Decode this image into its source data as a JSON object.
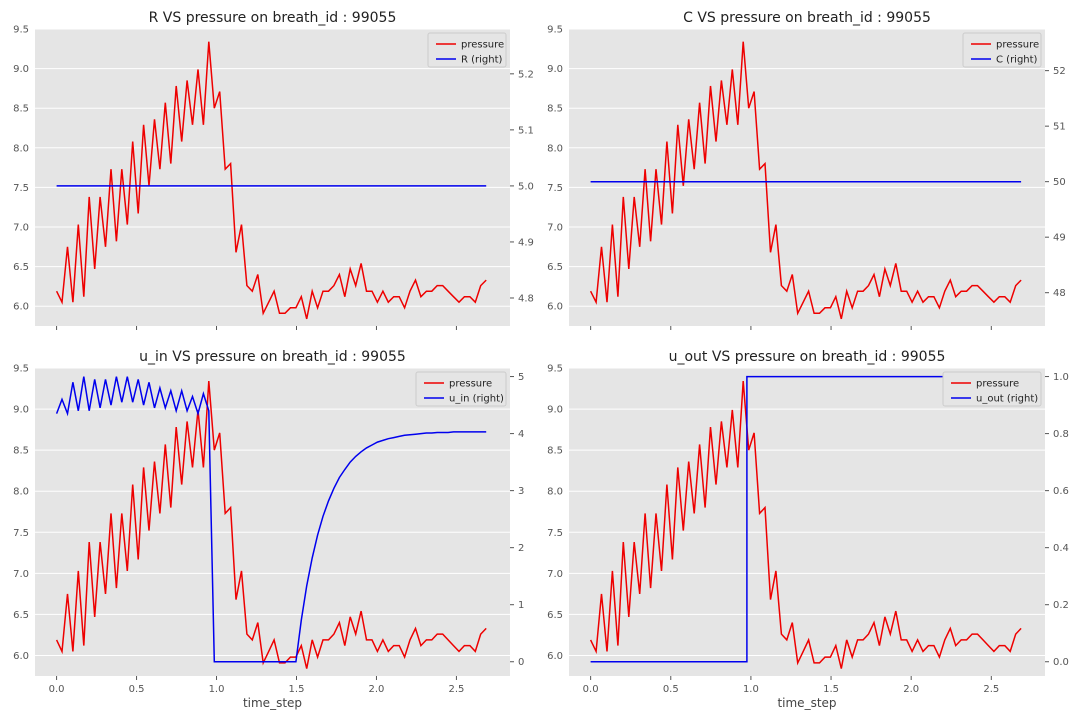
{
  "colors": {
    "pressure": "#ee0000",
    "right_series": "#0000ee",
    "panel_bg": "#e5e5e5",
    "grid": "#ffffff"
  },
  "chart_data": [
    {
      "type": "line",
      "title": "R VS pressure on breath_id : 99055",
      "xlabel": "",
      "x_ticks": [
        "0.0",
        "0.5",
        "1.0",
        "1.5",
        "2.0",
        "2.5"
      ],
      "x_tick_labels_visible": false,
      "xlim": [
        -0.135,
        2.835
      ],
      "left_axis": {
        "ylim": [
          5.75,
          9.5
        ],
        "ticks": [
          "6.0",
          "6.5",
          "7.0",
          "7.5",
          "8.0",
          "8.5",
          "9.0",
          "9.5"
        ]
      },
      "right_axis": {
        "ylim": [
          4.75,
          5.28
        ],
        "ticks": [
          "4.8",
          "4.9",
          "5.0",
          "5.1",
          "5.2"
        ]
      },
      "legend": {
        "placement": "top-right",
        "entries": [
          "pressure",
          "R (right)"
        ]
      },
      "grid": true,
      "series": [
        {
          "name": "pressure",
          "axis": "left"
        },
        {
          "name": "R (right)",
          "axis": "right",
          "kind": "constant",
          "value": 5.0
        }
      ]
    },
    {
      "type": "line",
      "title": "C VS pressure on breath_id : 99055",
      "xlabel": "",
      "x_ticks": [
        "0.0",
        "0.5",
        "1.0",
        "1.5",
        "2.0",
        "2.5"
      ],
      "x_tick_labels_visible": false,
      "xlim": [
        -0.135,
        2.835
      ],
      "left_axis": {
        "ylim": [
          5.75,
          9.5
        ],
        "ticks": [
          "6.0",
          "6.5",
          "7.0",
          "7.5",
          "8.0",
          "8.5",
          "9.0",
          "9.5"
        ]
      },
      "right_axis": {
        "ylim": [
          47.4,
          52.75
        ],
        "ticks": [
          "48",
          "49",
          "50",
          "51",
          "52"
        ]
      },
      "legend": {
        "placement": "top-right",
        "entries": [
          "pressure",
          "C (right)"
        ]
      },
      "grid": true,
      "series": [
        {
          "name": "pressure",
          "axis": "left"
        },
        {
          "name": "C (right)",
          "axis": "right",
          "kind": "constant",
          "value": 50
        }
      ]
    },
    {
      "type": "line",
      "title": "u_in VS pressure on breath_id : 99055",
      "xlabel": "time_step",
      "x_ticks": [
        "0.0",
        "0.5",
        "1.0",
        "1.5",
        "2.0",
        "2.5"
      ],
      "x_tick_labels_visible": true,
      "xlim": [
        -0.135,
        2.835
      ],
      "left_axis": {
        "ylim": [
          5.75,
          9.5
        ],
        "ticks": [
          "6.0",
          "6.5",
          "7.0",
          "7.5",
          "8.0",
          "8.5",
          "9.0",
          "9.5"
        ]
      },
      "right_axis": {
        "ylim": [
          -0.25,
          5.15
        ],
        "ticks": [
          "0",
          "1",
          "2",
          "3",
          "4",
          "5"
        ]
      },
      "legend": {
        "placement": "top-right",
        "entries": [
          "pressure",
          "u_in (right)"
        ]
      },
      "grid": true,
      "series": [
        {
          "name": "pressure",
          "axis": "left"
        },
        {
          "name": "u_in (right)",
          "axis": "right",
          "kind": "u_in"
        }
      ]
    },
    {
      "type": "line",
      "title": "u_out VS pressure on breath_id : 99055",
      "xlabel": "time_step",
      "x_ticks": [
        "0.0",
        "0.5",
        "1.0",
        "1.5",
        "2.0",
        "2.5"
      ],
      "x_tick_labels_visible": true,
      "xlim": [
        -0.135,
        2.835
      ],
      "left_axis": {
        "ylim": [
          5.75,
          9.5
        ],
        "ticks": [
          "6.0",
          "6.5",
          "7.0",
          "7.5",
          "8.0",
          "8.5",
          "9.0",
          "9.5"
        ]
      },
      "right_axis": {
        "ylim": [
          -0.05,
          1.03
        ],
        "ticks": [
          "0.0",
          "0.2",
          "0.4",
          "0.6",
          "0.8",
          "1.0"
        ]
      },
      "legend": {
        "placement": "top-right",
        "entries": [
          "pressure",
          "u_out (right)"
        ]
      },
      "grid": true,
      "series": [
        {
          "name": "pressure",
          "axis": "left"
        },
        {
          "name": "u_out (right)",
          "axis": "right",
          "kind": "step",
          "value_before": 0,
          "value_after": 1,
          "switch_at": 0.975
        }
      ]
    }
  ],
  "shared_series": {
    "time_step": [
      0.0,
      0.034,
      0.068,
      0.102,
      0.136,
      0.17,
      0.204,
      0.238,
      0.272,
      0.306,
      0.34,
      0.374,
      0.408,
      0.442,
      0.476,
      0.51,
      0.544,
      0.578,
      0.612,
      0.646,
      0.68,
      0.714,
      0.748,
      0.782,
      0.816,
      0.85,
      0.884,
      0.918,
      0.952,
      0.986,
      1.02,
      1.054,
      1.088,
      1.122,
      1.156,
      1.19,
      1.224,
      1.258,
      1.292,
      1.326,
      1.36,
      1.394,
      1.428,
      1.462,
      1.496,
      1.53,
      1.564,
      1.598,
      1.632,
      1.666,
      1.7,
      1.734,
      1.768,
      1.802,
      1.836,
      1.87,
      1.904,
      1.938,
      1.972,
      2.006,
      2.04,
      2.074,
      2.108,
      2.142,
      2.176,
      2.21,
      2.244,
      2.278,
      2.312,
      2.346,
      2.38,
      2.414,
      2.448,
      2.482,
      2.516,
      2.55,
      2.584,
      2.618,
      2.652,
      2.686
    ],
    "pressure": [
      6.19,
      6.05,
      6.75,
      6.05,
      7.03,
      6.12,
      7.38,
      6.47,
      7.38,
      6.75,
      7.73,
      6.82,
      7.73,
      7.03,
      8.08,
      7.17,
      8.29,
      7.52,
      8.36,
      7.73,
      8.57,
      7.8,
      8.78,
      8.08,
      8.85,
      8.29,
      8.99,
      8.29,
      9.34,
      8.5,
      8.71,
      7.73,
      7.8,
      6.68,
      7.03,
      6.26,
      6.19,
      6.4,
      5.91,
      6.05,
      6.19,
      5.91,
      5.91,
      5.98,
      5.98,
      6.12,
      5.84,
      6.19,
      5.98,
      6.19,
      6.19,
      6.26,
      6.4,
      6.12,
      6.47,
      6.26,
      6.54,
      6.19,
      6.19,
      6.05,
      6.19,
      6.05,
      6.12,
      6.12,
      5.98,
      6.19,
      6.33,
      6.12,
      6.19,
      6.19,
      6.26,
      6.26,
      6.19,
      6.12,
      6.05,
      6.12,
      6.12,
      6.05,
      6.26,
      6.33
    ],
    "u_in": [
      4.35,
      4.6,
      4.35,
      4.9,
      4.4,
      5.0,
      4.4,
      4.95,
      4.45,
      4.95,
      4.5,
      5.0,
      4.55,
      5.0,
      4.55,
      4.95,
      4.5,
      4.9,
      4.45,
      4.8,
      4.45,
      4.75,
      4.4,
      4.75,
      4.4,
      4.65,
      4.35,
      4.7,
      4.4,
      0,
      0,
      0,
      0,
      0,
      0,
      0,
      0,
      0,
      0,
      0,
      0,
      0,
      0,
      0,
      0,
      0.73,
      1.33,
      1.82,
      2.22,
      2.55,
      2.82,
      3.04,
      3.23,
      3.37,
      3.5,
      3.6,
      3.68,
      3.75,
      3.8,
      3.85,
      3.88,
      3.91,
      3.93,
      3.95,
      3.97,
      3.98,
      3.99,
      4.0,
      4.01,
      4.01,
      4.02,
      4.02,
      4.02,
      4.03,
      4.03,
      4.03,
      4.03,
      4.03,
      4.03,
      4.03
    ]
  }
}
